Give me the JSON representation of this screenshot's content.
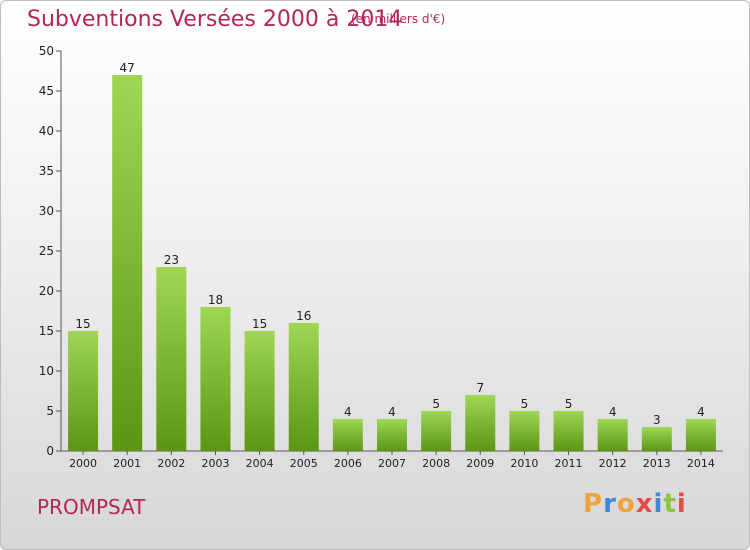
{
  "header": {
    "title": "Subventions Versées 2000 à 2014",
    "unit": "(en milliers d'€)"
  },
  "commune": "PROMPSAT",
  "logo": {
    "text": "Proxiti"
  },
  "colors": {
    "bar": "#7cbf2a",
    "bar_light": "#9fd655",
    "bar_dark": "#5a9614",
    "title": "#b3265c"
  },
  "chart_data": {
    "type": "bar",
    "title": "Subventions Versées 2000 à 2014",
    "subtitle": "(en milliers d'€)",
    "xlabel": "",
    "ylabel": "",
    "categories": [
      "2000",
      "2001",
      "2002",
      "2003",
      "2004",
      "2005",
      "2006",
      "2007",
      "2008",
      "2009",
      "2010",
      "2011",
      "2012",
      "2013",
      "2014"
    ],
    "values": [
      15,
      47,
      23,
      18,
      15,
      16,
      4,
      4,
      5,
      7,
      5,
      5,
      4,
      3,
      4
    ],
    "ylim": [
      0,
      50
    ],
    "yticks": [
      0,
      5,
      10,
      15,
      20,
      25,
      30,
      35,
      40,
      45,
      50
    ],
    "grid": false,
    "data_labels": true
  }
}
